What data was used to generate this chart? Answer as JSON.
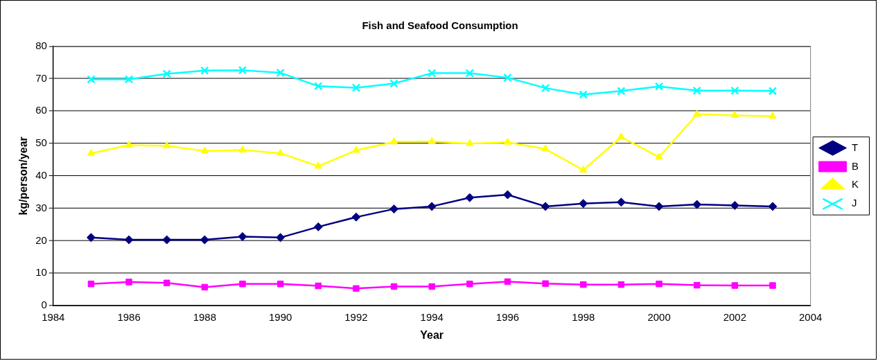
{
  "chart_data": {
    "type": "line",
    "title": "Fish and Seafood Consumption",
    "xlabel": "Year",
    "ylabel": "kg/person/year",
    "x": [
      1985,
      1986,
      1987,
      1988,
      1989,
      1990,
      1991,
      1992,
      1993,
      1994,
      1995,
      1996,
      1997,
      1998,
      1999,
      2000,
      2001,
      2002,
      2003
    ],
    "series": [
      {
        "name": "T",
        "color": "#000080",
        "marker": "diamond",
        "values": [
          21,
          20.3,
          20.3,
          20.3,
          21.3,
          21,
          24.3,
          27.3,
          29.8,
          30.6,
          33.3,
          34.2,
          30.6,
          31.5,
          31.9,
          30.6,
          31.2,
          30.9,
          30.6
        ]
      },
      {
        "name": "B",
        "color": "#ff00ff",
        "marker": "square",
        "values": [
          6.7,
          7.3,
          7,
          5.7,
          6.7,
          6.7,
          6.1,
          5.3,
          5.9,
          5.9,
          6.7,
          7.4,
          6.8,
          6.5,
          6.5,
          6.7,
          6.3,
          6.2,
          6.2
        ]
      },
      {
        "name": "K",
        "color": "#ffff00",
        "marker": "triangle",
        "values": [
          47,
          49.5,
          49.3,
          47.7,
          48,
          47,
          43,
          47.9,
          50.5,
          50.6,
          50,
          50.4,
          48.3,
          41.8,
          52,
          45.8,
          59,
          58.7,
          58.4
        ]
      },
      {
        "name": "J",
        "color": "#00ffff",
        "marker": "cross",
        "values": [
          69.8,
          69.8,
          71.5,
          72.5,
          72.6,
          71.8,
          67.7,
          67.2,
          68.5,
          71.7,
          71.7,
          70.3,
          67.1,
          65.1,
          66.2,
          67.6,
          66.3,
          66.3,
          66.2
        ]
      }
    ],
    "xlim": [
      1984,
      2004
    ],
    "xticks": [
      1984,
      1986,
      1988,
      1990,
      1992,
      1994,
      1996,
      1998,
      2000,
      2002,
      2004
    ],
    "ylim": [
      0,
      80
    ],
    "yticks": [
      0,
      10,
      20,
      30,
      40,
      50,
      60,
      70,
      80
    ],
    "grid": "y",
    "legend": "right"
  }
}
